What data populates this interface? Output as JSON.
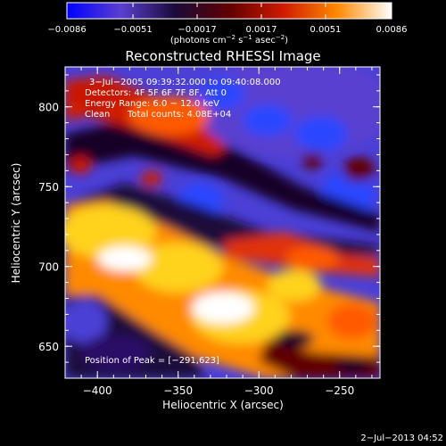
{
  "chart_data": {
    "type": "heatmap",
    "title": "Reconstructed RHESSI Image",
    "xlabel": "Heliocentric X (arcsec)",
    "ylabel": "Heliocentric Y (arcsec)",
    "xlim": [
      -420,
      -225
    ],
    "ylim": [
      630,
      825
    ],
    "x_ticks": [
      -400,
      -350,
      -300,
      -250
    ],
    "y_ticks": [
      650,
      700,
      750,
      800
    ],
    "x_tick_labels": [
      "−400",
      "−350",
      "−300",
      "−250"
    ],
    "y_tick_labels": [
      "650",
      "700",
      "750",
      "800"
    ],
    "grid": false,
    "colorbar": {
      "ticks": [
        -0.0086,
        -0.0051,
        -0.0017,
        0.0017,
        0.0051,
        0.0086
      ],
      "tick_labels": [
        "−0.0086",
        "−0.0051",
        "−0.0017",
        "0.0017",
        "0.0051",
        "0.0086"
      ],
      "unit_label_parts": {
        "pre": "(photons cm",
        "sup1": "−2",
        "mid": " s",
        "sup2": "−1",
        "post": " asec",
        "sup3": "−2",
        "end": ")"
      },
      "colors": [
        "#0000ff",
        "#5a3fcf",
        "#1a0a3a",
        "#600000",
        "#d01a00",
        "#ff8a00",
        "#ffffff"
      ]
    },
    "annotations": {
      "time": "3−Jul−2005 09:39:32.000 to 09:40:08.000",
      "detectors": "Detectors: 4F 5F 6F 7F 8F, Att 0",
      "energy": "Energy Range: 6.0 − 12.0 keV",
      "method": "Clean",
      "counts": "Total counts: 4.08E+04",
      "peak": "Position of Peak = [−291,623]"
    },
    "stamp": "2−Jul−2013 04:52"
  }
}
